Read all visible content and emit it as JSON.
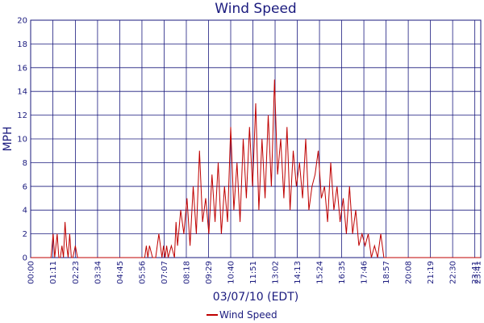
{
  "chart_data": {
    "type": "line",
    "title": "Wind Speed",
    "xlabel": "03/07/10 (EDT)",
    "ylabel": "MPH",
    "ylim": [
      0,
      20
    ],
    "y_ticks": [
      "0",
      "2",
      "4",
      "6",
      "8",
      "10",
      "12",
      "14",
      "16",
      "18",
      "20"
    ],
    "x_tick_labels": [
      "00:00",
      "01:11",
      "02:23",
      "03:34",
      "04:45",
      "05:56",
      "07:07",
      "08:18",
      "09:29",
      "10:40",
      "11:51",
      "13:02",
      "14:13",
      "15:24",
      "16:35",
      "17:46",
      "18:57",
      "20:08",
      "21:19",
      "22:30",
      "23:41",
      "23:41"
    ],
    "x_range_minutes": [
      0,
      1440
    ],
    "grid": true,
    "legend_position": "bottom-center",
    "colors": {
      "series": "#bf0000",
      "grid": "#1a1a7e",
      "text": "#1a1a7e"
    },
    "series": [
      {
        "name": "Wind Speed",
        "x": [
          "00:00",
          "01:05",
          "01:12",
          "01:17",
          "01:25",
          "01:30",
          "01:35",
          "01:40",
          "01:45",
          "01:50",
          "01:55",
          "02:00",
          "02:05",
          "02:10",
          "02:15",
          "02:23",
          "02:30",
          "02:35",
          "02:45",
          "03:00",
          "04:00",
          "05:00",
          "05:56",
          "06:00",
          "06:05",
          "06:10",
          "06:15",
          "06:20",
          "06:30",
          "06:40",
          "06:50",
          "07:00",
          "07:05",
          "07:10",
          "07:15",
          "07:20",
          "07:30",
          "07:40",
          "07:45",
          "07:50",
          "08:00",
          "08:10",
          "08:20",
          "08:30",
          "08:40",
          "08:50",
          "09:00",
          "09:10",
          "09:20",
          "09:30",
          "09:40",
          "09:50",
          "10:00",
          "10:10",
          "10:20",
          "10:30",
          "10:40",
          "10:50",
          "11:00",
          "11:10",
          "11:20",
          "11:30",
          "11:40",
          "11:50",
          "12:00",
          "12:10",
          "12:20",
          "12:30",
          "12:40",
          "12:50",
          "13:00",
          "13:10",
          "13:20",
          "13:30",
          "13:40",
          "13:50",
          "14:00",
          "14:10",
          "14:20",
          "14:30",
          "14:40",
          "14:50",
          "15:00",
          "15:10",
          "15:20",
          "15:30",
          "15:40",
          "15:50",
          "16:00",
          "16:10",
          "16:20",
          "16:30",
          "16:40",
          "16:50",
          "17:00",
          "17:10",
          "17:20",
          "17:30",
          "17:40",
          "17:50",
          "18:00",
          "18:10",
          "18:20",
          "18:30",
          "18:40",
          "18:50",
          "19:00",
          "20:00",
          "21:00",
          "22:00",
          "23:00",
          "23:59"
        ],
        "values": [
          0,
          0,
          2,
          0,
          2,
          0,
          0,
          1,
          0,
          3,
          1,
          0,
          2,
          0,
          0,
          1,
          0,
          0,
          0,
          0,
          0,
          0,
          0,
          0,
          0,
          1,
          0,
          1,
          0,
          0,
          2,
          0,
          1,
          0,
          1,
          0,
          1,
          0,
          3,
          1,
          4,
          2,
          5,
          1,
          6,
          2,
          9,
          3,
          5,
          2,
          7,
          3,
          8,
          2,
          6,
          3,
          11,
          4,
          8,
          3,
          10,
          5,
          11,
          6,
          13,
          4,
          10,
          5,
          12,
          6,
          15,
          7,
          10,
          5,
          11,
          4,
          9,
          6,
          8,
          5,
          10,
          4,
          6,
          7,
          9,
          5,
          6,
          3,
          8,
          4,
          6,
          3,
          5,
          2,
          6,
          2,
          4,
          1,
          2,
          1,
          2,
          0,
          1,
          0,
          2,
          0,
          0,
          0,
          0,
          0,
          0,
          0
        ]
      }
    ]
  }
}
